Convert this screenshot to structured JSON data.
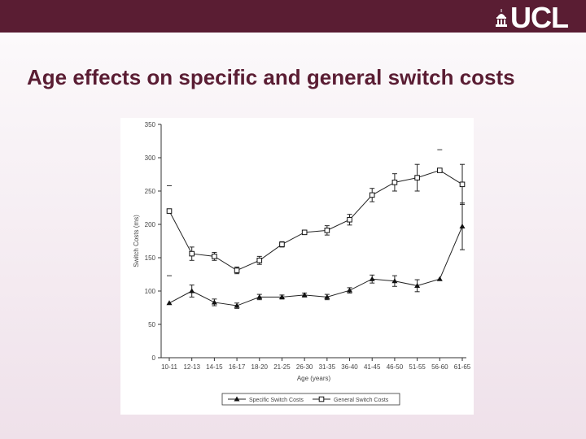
{
  "header": {
    "logo_text": "UCL",
    "logo_icon": "portico-dome-icon",
    "bar_color": "#5a1d33"
  },
  "slide": {
    "title": "Age effects on specific and general switch costs"
  },
  "chart_data": {
    "type": "line",
    "title": "",
    "xlabel": "Age (years)",
    "ylabel": "Switch Costs (ms)",
    "ylim": [
      0,
      350
    ],
    "yticks": [
      0,
      50,
      100,
      150,
      200,
      250,
      300,
      350
    ],
    "ytick_labels": [
      "0",
      "50",
      "100",
      "150",
      "200",
      "250",
      "300",
      "350"
    ],
    "categories": [
      "10-11",
      "12-13",
      "14-15",
      "16-17",
      "18-20",
      "21-25",
      "26-30",
      "31-35",
      "36-40",
      "41-45",
      "46-50",
      "51-55",
      "56-60",
      "61-65"
    ],
    "grid": false,
    "legend_position": "bottom",
    "series": [
      {
        "name": "Specific Switch Costs",
        "marker": "triangle",
        "values": [
          82,
          100,
          83,
          78,
          91,
          91,
          94,
          91,
          101,
          118,
          115,
          108,
          118,
          197
        ],
        "err": [
          0,
          9,
          5,
          4,
          4,
          3,
          3,
          4,
          4,
          6,
          8,
          9,
          0,
          35
        ]
      },
      {
        "name": "General Switch Costs",
        "marker": "square",
        "values": [
          220,
          156,
          152,
          131,
          146,
          170,
          188,
          191,
          207,
          244,
          263,
          270,
          281,
          260
        ],
        "err": [
          0,
          10,
          6,
          5,
          6,
          4,
          3,
          7,
          8,
          10,
          13,
          20,
          0,
          30
        ]
      }
    ],
    "stray_marks": [
      {
        "x_index": 0,
        "y": 258
      },
      {
        "x_index": 0,
        "y": 123
      },
      {
        "x_index": 12,
        "y": 312
      }
    ]
  }
}
